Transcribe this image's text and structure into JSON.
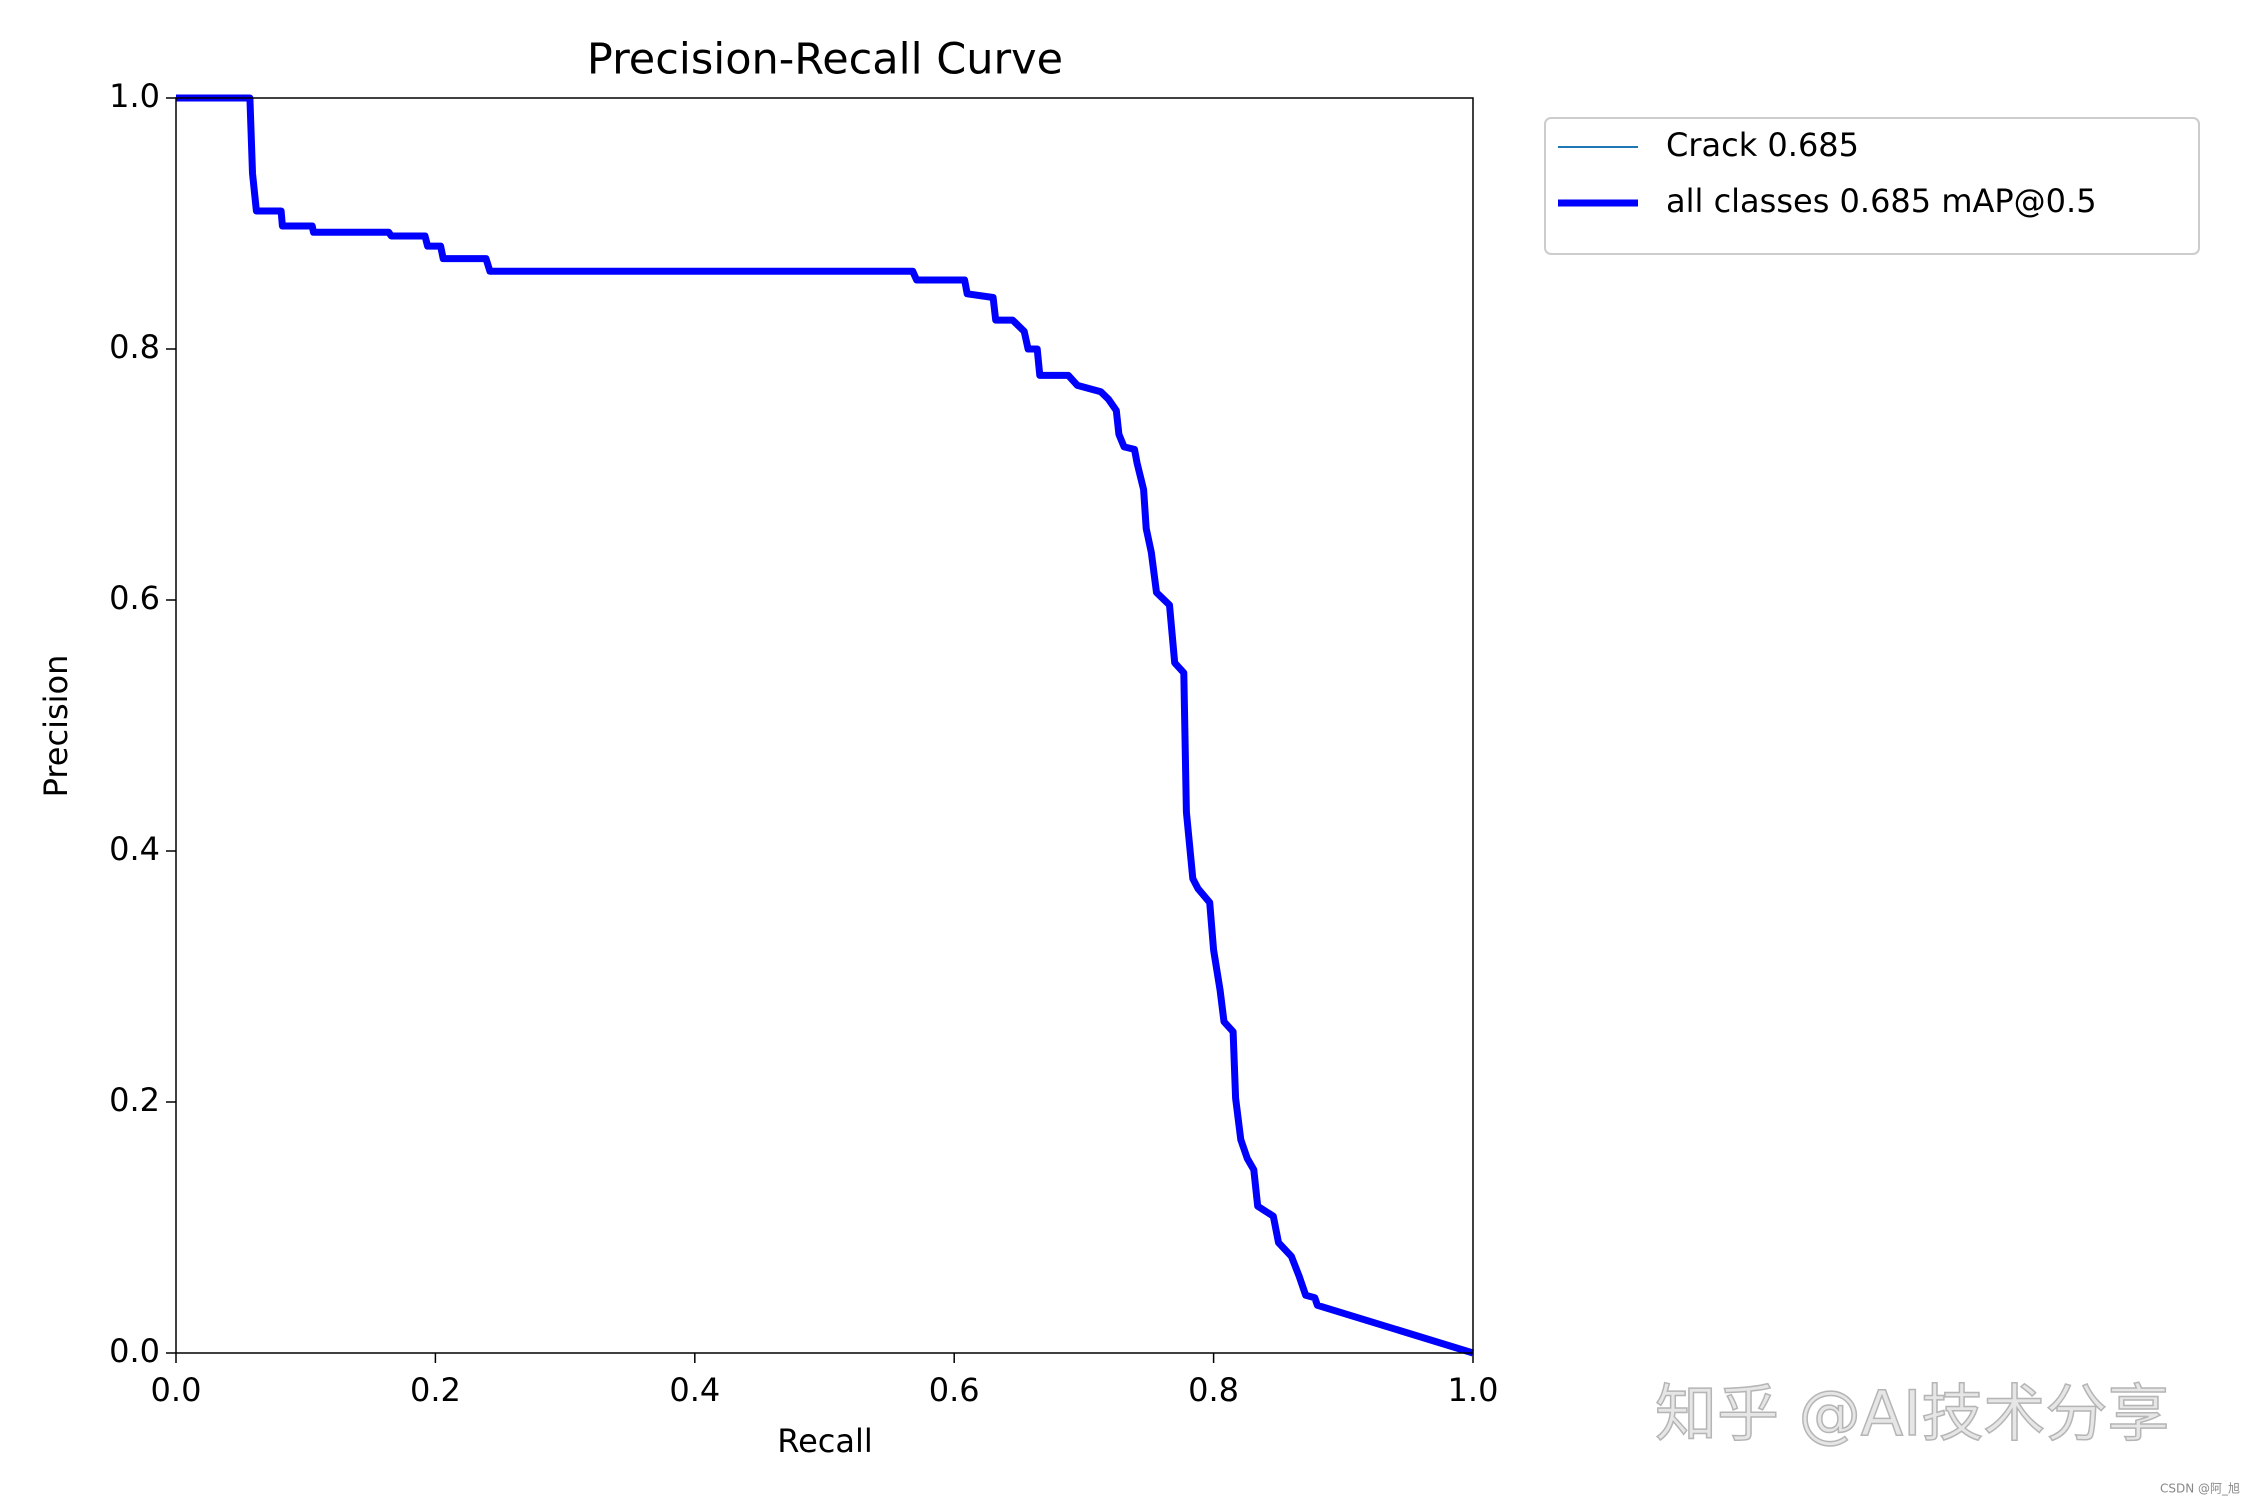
{
  "chart_data": {
    "type": "line",
    "title": "Precision-Recall Curve",
    "xlabel": "Recall",
    "ylabel": "Precision",
    "xlim": [
      0,
      1
    ],
    "ylim": [
      0,
      1
    ],
    "xticks": [
      {
        "value": 0,
        "label": "0.0"
      },
      0.2,
      0.4,
      0.6,
      0.8,
      {
        "value": 1,
        "label": "1.0"
      }
    ],
    "yticks": [
      {
        "value": 0,
        "label": "0.0"
      },
      0.2,
      0.4,
      0.6,
      0.8,
      {
        "value": 1,
        "label": "1.0"
      }
    ],
    "grid": false,
    "legend": "outside-upper-right",
    "x": [
      0,
      0.057,
      0.059,
      0.062,
      0.081,
      0.082,
      0.105,
      0.106,
      0.164,
      0.166,
      0.192,
      0.194,
      0.204,
      0.206,
      0.239,
      0.242,
      0.568,
      0.571,
      0.608,
      0.61,
      0.63,
      0.632,
      0.645,
      0.654,
      0.657,
      0.664,
      0.666,
      0.688,
      0.695,
      0.713,
      0.719,
      0.725,
      0.727,
      0.731,
      0.739,
      0.741,
      0.746,
      0.748,
      0.752,
      0.756,
      0.766,
      0.77,
      0.777,
      0.779,
      0.784,
      0.788,
      0.797,
      0.8,
      0.805,
      0.808,
      0.815,
      0.817,
      0.821,
      0.826,
      0.831,
      0.834,
      0.846,
      0.85,
      0.86,
      0.866,
      0.871,
      0.878,
      0.88,
      1.0
    ],
    "series": [
      {
        "name": "Crack 0.685",
        "color": "#1f77b4",
        "linewidth": 2,
        "values": [
          1.0,
          1.0,
          0.94,
          0.91,
          0.91,
          0.898,
          0.898,
          0.893,
          0.893,
          0.89,
          0.89,
          0.882,
          0.882,
          0.872,
          0.872,
          0.862,
          0.862,
          0.855,
          0.855,
          0.844,
          0.841,
          0.823,
          0.823,
          0.814,
          0.8,
          0.8,
          0.779,
          0.779,
          0.771,
          0.766,
          0.76,
          0.751,
          0.732,
          0.722,
          0.72,
          0.709,
          0.688,
          0.657,
          0.638,
          0.606,
          0.596,
          0.55,
          0.542,
          0.431,
          0.378,
          0.37,
          0.359,
          0.321,
          0.289,
          0.264,
          0.256,
          0.203,
          0.17,
          0.155,
          0.146,
          0.117,
          0.109,
          0.088,
          0.077,
          0.061,
          0.046,
          0.044,
          0.038,
          0
        ]
      },
      {
        "name": "all classes 0.685 mAP@0.5",
        "color": "#0000ff",
        "linewidth": 7,
        "values": [
          1.0,
          1.0,
          0.94,
          0.91,
          0.91,
          0.898,
          0.898,
          0.893,
          0.893,
          0.89,
          0.89,
          0.882,
          0.882,
          0.872,
          0.872,
          0.862,
          0.862,
          0.855,
          0.855,
          0.844,
          0.841,
          0.823,
          0.823,
          0.814,
          0.8,
          0.8,
          0.779,
          0.779,
          0.771,
          0.766,
          0.76,
          0.751,
          0.732,
          0.722,
          0.72,
          0.709,
          0.688,
          0.657,
          0.638,
          0.606,
          0.596,
          0.55,
          0.542,
          0.431,
          0.378,
          0.37,
          0.359,
          0.321,
          0.289,
          0.264,
          0.256,
          0.203,
          0.17,
          0.155,
          0.146,
          0.117,
          0.109,
          0.088,
          0.077,
          0.061,
          0.046,
          0.044,
          0.038,
          0
        ]
      }
    ],
    "annotations": [
      "知乎 @AI技术分享",
      "CSDN @阿_旭"
    ]
  }
}
